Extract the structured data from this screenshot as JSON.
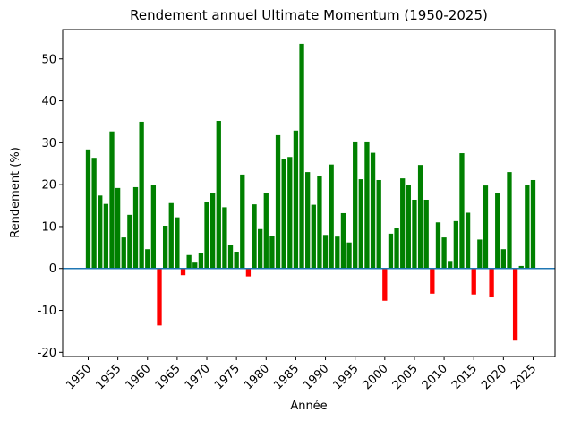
{
  "chart_data": {
    "type": "bar",
    "title": "Rendement annuel Ultimate Momentum (1950-2025)",
    "xlabel": "Année",
    "ylabel": "Rendement (%)",
    "x": [
      1950,
      1951,
      1952,
      1953,
      1954,
      1955,
      1956,
      1957,
      1958,
      1959,
      1960,
      1961,
      1962,
      1963,
      1964,
      1965,
      1966,
      1967,
      1968,
      1969,
      1970,
      1971,
      1972,
      1973,
      1974,
      1975,
      1976,
      1977,
      1978,
      1979,
      1980,
      1981,
      1982,
      1983,
      1984,
      1985,
      1986,
      1987,
      1988,
      1989,
      1990,
      1991,
      1992,
      1993,
      1994,
      1995,
      1996,
      1997,
      1998,
      1999,
      2000,
      2001,
      2002,
      2003,
      2004,
      2005,
      2006,
      2007,
      2008,
      2009,
      2010,
      2011,
      2012,
      2013,
      2014,
      2015,
      2016,
      2017,
      2018,
      2019,
      2020,
      2021,
      2022,
      2023,
      2024,
      2025
    ],
    "values": [
      28.4,
      26.4,
      17.4,
      15.4,
      32.7,
      19.2,
      7.4,
      12.8,
      19.4,
      35.0,
      4.6,
      20.0,
      -13.6,
      10.2,
      15.6,
      12.2,
      -1.6,
      3.2,
      1.4,
      3.6,
      15.8,
      18.1,
      35.2,
      14.6,
      5.6,
      4.0,
      22.4,
      -1.9,
      15.3,
      9.4,
      18.1,
      7.8,
      31.8,
      26.2,
      26.6,
      32.9,
      53.6,
      23.0,
      15.2,
      22.0,
      8.0,
      24.8,
      7.6,
      13.2,
      6.2,
      30.3,
      21.3,
      30.3,
      27.6,
      21.1,
      -7.7,
      8.3,
      9.7,
      21.5,
      20.0,
      16.4,
      24.7,
      16.4,
      -6.0,
      11.0,
      7.4,
      1.8,
      11.3,
      27.5,
      13.3,
      -6.2,
      6.9,
      19.8,
      -6.9,
      18.1,
      4.6,
      23.0,
      -17.2,
      0.6,
      20.0,
      21.1
    ],
    "ylim": [
      -21,
      57
    ],
    "xlim": [
      1945.7,
      2028.7
    ],
    "yticks": [
      -20,
      -10,
      0,
      10,
      20,
      30,
      40,
      50
    ],
    "xticks": [
      1950,
      1955,
      1960,
      1965,
      1970,
      1975,
      1980,
      1985,
      1990,
      1995,
      2000,
      2005,
      2010,
      2015,
      2020,
      2025
    ],
    "colors": {
      "positive": "#008000",
      "negative": "#ff0000",
      "zero_line": "#1f77b4"
    },
    "grid": false
  }
}
